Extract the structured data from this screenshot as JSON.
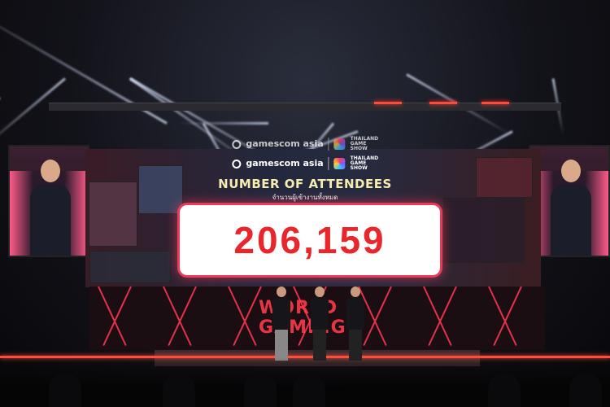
{
  "screen": {
    "brand_left": "gamescom asia",
    "brand_right": "THAILAND GAME SHOW",
    "title": "NUMBER OF ATTENDEES",
    "subtitle_thai": "จำนวนผู้เข้างานทั้งหมด",
    "attendee_count": "206,159"
  },
  "stage_sign": "WORLD GAMING",
  "colors": {
    "counter_text": "#e8262c",
    "title_text": "#f6ecb0",
    "accent": "#e83b5a"
  }
}
